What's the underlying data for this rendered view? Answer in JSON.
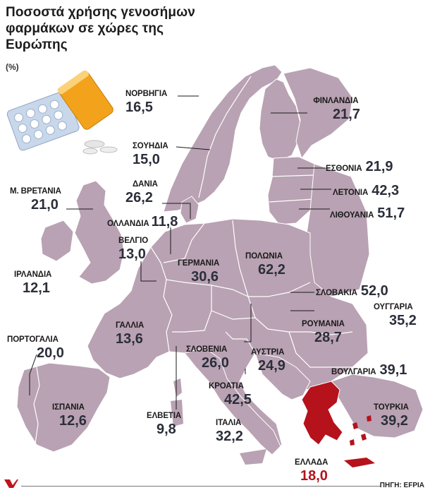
{
  "title": "Ποσοστά χρήσης γενοσήμων φαρμάκων σε χώρες της Ευρώπης",
  "unit": "(%)",
  "source": "ΠΗΓΗ: EFPIA",
  "colors": {
    "land": "#b9a2b3",
    "border": "#ffffff",
    "greece": "#b5121b",
    "text": "#1a1a1a",
    "value": "#2b2f3a"
  },
  "countries": [
    {
      "id": "norway",
      "name": "ΝΟΡΒΗΓΙΑ",
      "value": "16,5"
    },
    {
      "id": "finland",
      "name": "ΦΙΝΛΑΝΔΙΑ",
      "value": "21,7"
    },
    {
      "id": "sweden",
      "name": "ΣΟΥΗΔΙΑ",
      "value": "15,0"
    },
    {
      "id": "estonia",
      "name": "ΕΣΘΟΝΙΑ",
      "value": "21,9"
    },
    {
      "id": "uk",
      "name": "Μ. ΒΡΕΤΑΝΙΑ",
      "value": "21,0"
    },
    {
      "id": "denmark",
      "name": "ΔΑΝΙΑ",
      "value": "26,2"
    },
    {
      "id": "latvia",
      "name": "ΛΕΤΟΝΙΑ",
      "value": "42,3"
    },
    {
      "id": "netherlands",
      "name": "ΟΛΛΑΝΔΙΑ",
      "value": "11,8"
    },
    {
      "id": "lithuania",
      "name": "ΛΙΘΟΥΑΝΙΑ",
      "value": "51,7"
    },
    {
      "id": "belgium",
      "name": "ΒΕΛΓΙΟ",
      "value": "13,0"
    },
    {
      "id": "germany",
      "name": "ΓΕΡΜΑΝΙΑ",
      "value": "30,6"
    },
    {
      "id": "poland",
      "name": "ΠΟΛΩΝΙΑ",
      "value": "62,2"
    },
    {
      "id": "ireland",
      "name": "ΙΡΛΑΝΔΙΑ",
      "value": "12,1"
    },
    {
      "id": "slovakia",
      "name": "ΣΛΟΒΑΚΙΑ",
      "value": "52,0"
    },
    {
      "id": "hungary",
      "name": "ΟΥΓΓΑΡΙΑ",
      "value": "35,2"
    },
    {
      "id": "france",
      "name": "ΓΑΛΛΙΑ",
      "value": "13,6"
    },
    {
      "id": "romania",
      "name": "ΡΟΥΜΑΝΙΑ",
      "value": "28,7"
    },
    {
      "id": "portugal",
      "name": "ΠΟΡΤΟΓΑΛΙΑ",
      "value": "20,0"
    },
    {
      "id": "slovenia",
      "name": "ΣΛΟΒΕΝΙΑ",
      "value": "26,0"
    },
    {
      "id": "austria",
      "name": "ΑΥΣΤΡΙΑ",
      "value": "24,9"
    },
    {
      "id": "bulgaria",
      "name": "ΒΟΥΛΓΑΡΙΑ",
      "value": "39,1"
    },
    {
      "id": "croatia",
      "name": "ΚΡΟΑΤΙΑ",
      "value": "42,5"
    },
    {
      "id": "spain",
      "name": "ΙΣΠΑΝΙΑ",
      "value": "12,6"
    },
    {
      "id": "turkey",
      "name": "ΤΟΥΡΚΙΑ",
      "value": "39,2"
    },
    {
      "id": "switzerland",
      "name": "ΕΛΒΕΤΙΑ",
      "value": "9,8"
    },
    {
      "id": "italy",
      "name": "ΙΤΑΛΙΑ",
      "value": "32,2"
    },
    {
      "id": "greece",
      "name": "ΕΛΛΑΔΑ",
      "value": "18,0"
    }
  ]
}
